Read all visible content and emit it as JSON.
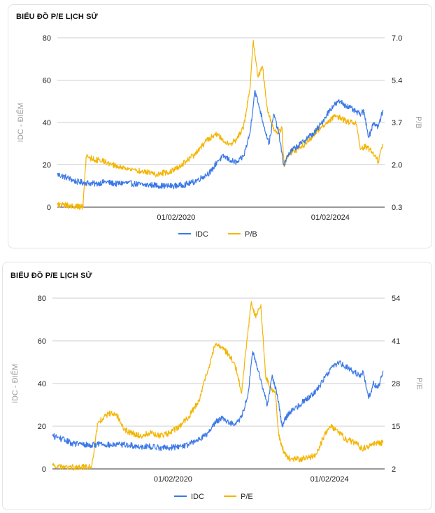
{
  "colors": {
    "idc": "#3b78e7",
    "secondary": "#f4b400",
    "grid": "#cccccc",
    "axis": "#333333"
  },
  "chart_data": [
    {
      "type": "line",
      "title": "BIỂU ĐỒ P/E LỊCH SỬ",
      "xlabel": "",
      "ylabel_left": "IDC - ĐIỂM",
      "ylabel_right": "P/B",
      "x_ticks": [
        "01/02/2020",
        "01/02/2024"
      ],
      "xlim": [
        "2017-01-01",
        "2025-06-30"
      ],
      "y_left_ticks": [
        "0",
        "20",
        "40",
        "60",
        "80"
      ],
      "y_left_lim": [
        0,
        80
      ],
      "y_right_ticks": [
        "0.3",
        "2.0",
        "3.7",
        "5.4",
        "7.0"
      ],
      "y_right_lim": [
        0.3,
        7.0
      ],
      "grid": true,
      "legend_position": "bottom",
      "series": [
        {
          "name": "IDC",
          "axis": "left",
          "color": "#3b78e7",
          "x": [
            "2017-01-01",
            "2017-04-01",
            "2017-07-01",
            "2017-10-01",
            "2018-01-01",
            "2018-04-01",
            "2018-07-01",
            "2018-10-01",
            "2019-01-01",
            "2019-04-01",
            "2019-07-01",
            "2019-10-01",
            "2020-01-01",
            "2020-04-01",
            "2020-07-01",
            "2020-10-01",
            "2021-01-01",
            "2021-03-01",
            "2021-05-01",
            "2021-07-01",
            "2021-09-01",
            "2021-11-01",
            "2022-01-01",
            "2022-02-15",
            "2022-04-01",
            "2022-05-15",
            "2022-07-01",
            "2022-08-15",
            "2022-10-01",
            "2022-11-15",
            "2023-01-01",
            "2023-03-01",
            "2023-05-01",
            "2023-07-01",
            "2023-09-01",
            "2023-11-01",
            "2024-01-01",
            "2024-03-01",
            "2024-05-01",
            "2024-07-01",
            "2024-09-01",
            "2024-11-01",
            "2024-12-15",
            "2025-02-01",
            "2025-03-15",
            "2025-05-01",
            "2025-06-15"
          ],
          "values": [
            15.5,
            14,
            12,
            11.5,
            11,
            12,
            11,
            11.5,
            11,
            10.5,
            10.5,
            10,
            10,
            10.5,
            11.5,
            14,
            17,
            22,
            24,
            22,
            21,
            24,
            35,
            55,
            47,
            38,
            30,
            44,
            35,
            20,
            25,
            28,
            30,
            33,
            35,
            39,
            44,
            48,
            50,
            48,
            46,
            44,
            45,
            33,
            40,
            38,
            46
          ]
        },
        {
          "name": "P/B",
          "axis": "right",
          "color": "#f4b400",
          "x": [
            "2017-01-01",
            "2017-05-01",
            "2017-09-01",
            "2017-10-01",
            "2017-12-01",
            "2018-04-01",
            "2018-08-01",
            "2018-12-01",
            "2019-04-01",
            "2019-08-01",
            "2019-12-01",
            "2020-04-01",
            "2020-08-01",
            "2020-12-01",
            "2021-03-01",
            "2021-05-01",
            "2021-07-01",
            "2021-09-01",
            "2021-11-01",
            "2022-01-01",
            "2022-02-01",
            "2022-03-15",
            "2022-05-01",
            "2022-06-15",
            "2022-08-01",
            "2022-09-15",
            "2022-11-01",
            "2022-11-20",
            "2023-01-01",
            "2023-04-01",
            "2023-07-01",
            "2023-10-01",
            "2024-01-01",
            "2024-04-01",
            "2024-07-01",
            "2024-10-01",
            "2024-11-15",
            "2025-01-01",
            "2025-03-01",
            "2025-05-01",
            "2025-06-15"
          ],
          "values": [
            0.4,
            0.35,
            0.3,
            2.3,
            2.2,
            2.1,
            1.9,
            1.8,
            1.7,
            1.6,
            1.7,
            2.0,
            2.4,
            3.0,
            3.2,
            2.9,
            2.8,
            3.0,
            3.5,
            5.0,
            6.9,
            5.5,
            5.8,
            4.2,
            3.5,
            3.2,
            3.4,
            1.9,
            2.4,
            2.6,
            2.9,
            3.3,
            3.7,
            3.9,
            3.7,
            3.6,
            2.6,
            2.7,
            2.5,
            2.1,
            2.8
          ]
        }
      ]
    },
    {
      "type": "line",
      "title": "BIỂU ĐỒ P/E LỊCH SỬ",
      "xlabel": "",
      "ylabel_left": "IDC - ĐIỂM",
      "ylabel_right": "P/E",
      "x_ticks": [
        "01/02/2020",
        "01/02/2024"
      ],
      "xlim": [
        "2017-01-01",
        "2025-06-30"
      ],
      "y_left_ticks": [
        "0",
        "20",
        "40",
        "60",
        "80"
      ],
      "y_left_lim": [
        0,
        80
      ],
      "y_right_ticks": [
        "2",
        "15",
        "28",
        "41",
        "54"
      ],
      "y_right_lim": [
        2,
        54
      ],
      "grid": true,
      "legend_position": "bottom",
      "series": [
        {
          "name": "IDC",
          "axis": "left",
          "color": "#3b78e7",
          "x": [
            "2017-01-01",
            "2017-04-01",
            "2017-07-01",
            "2017-10-01",
            "2018-01-01",
            "2018-04-01",
            "2018-07-01",
            "2018-10-01",
            "2019-01-01",
            "2019-04-01",
            "2019-07-01",
            "2019-10-01",
            "2020-01-01",
            "2020-04-01",
            "2020-07-01",
            "2020-10-01",
            "2021-01-01",
            "2021-03-01",
            "2021-05-01",
            "2021-07-01",
            "2021-09-01",
            "2021-11-01",
            "2022-01-01",
            "2022-02-15",
            "2022-04-01",
            "2022-05-15",
            "2022-07-01",
            "2022-08-15",
            "2022-10-01",
            "2022-11-15",
            "2023-01-01",
            "2023-03-01",
            "2023-05-01",
            "2023-07-01",
            "2023-09-01",
            "2023-11-01",
            "2024-01-01",
            "2024-03-01",
            "2024-05-01",
            "2024-07-01",
            "2024-09-01",
            "2024-11-01",
            "2024-12-15",
            "2025-02-01",
            "2025-03-15",
            "2025-05-01",
            "2025-06-15"
          ],
          "values": [
            15.5,
            14,
            12,
            11.5,
            11,
            12,
            11,
            11.5,
            11,
            10.5,
            10.5,
            10,
            10,
            10.5,
            11.5,
            14,
            17,
            22,
            24,
            22,
            21,
            24,
            35,
            55,
            47,
            38,
            30,
            44,
            35,
            20,
            25,
            28,
            30,
            33,
            35,
            39,
            44,
            48,
            50,
            48,
            46,
            44,
            45,
            33,
            40,
            38,
            46
          ]
        },
        {
          "name": "P/E",
          "axis": "right",
          "color": "#f4b400",
          "x": [
            "2017-01-01",
            "2017-05-01",
            "2017-09-01",
            "2018-01-01",
            "2018-03-01",
            "2018-05-01",
            "2018-07-01",
            "2018-09-01",
            "2018-11-01",
            "2019-01-01",
            "2019-04-01",
            "2019-07-01",
            "2019-10-01",
            "2020-01-01",
            "2020-04-01",
            "2020-07-01",
            "2020-10-01",
            "2021-01-01",
            "2021-03-01",
            "2021-05-01",
            "2021-07-01",
            "2021-09-01",
            "2021-11-01",
            "2022-01-01",
            "2022-02-01",
            "2022-03-15",
            "2022-05-01",
            "2022-06-15",
            "2022-08-01",
            "2022-09-15",
            "2022-10-15",
            "2022-12-01",
            "2023-02-01",
            "2023-05-01",
            "2023-08-01",
            "2023-10-01",
            "2023-12-01",
            "2024-02-01",
            "2024-04-01",
            "2024-07-01",
            "2024-10-01",
            "2024-12-01",
            "2025-02-01",
            "2025-04-01",
            "2025-06-15"
          ],
          "values": [
            3,
            2.5,
            2.5,
            2.5,
            16,
            18,
            19,
            18,
            14,
            13,
            12,
            13,
            12,
            13,
            15,
            18,
            23,
            33,
            40,
            39,
            37,
            34,
            25,
            44,
            53,
            48,
            52,
            30,
            27,
            25,
            12,
            7,
            5,
            5,
            5.5,
            6.5,
            11,
            15,
            14,
            11,
            10,
            8,
            9,
            10,
            10
          ]
        }
      ]
    }
  ]
}
